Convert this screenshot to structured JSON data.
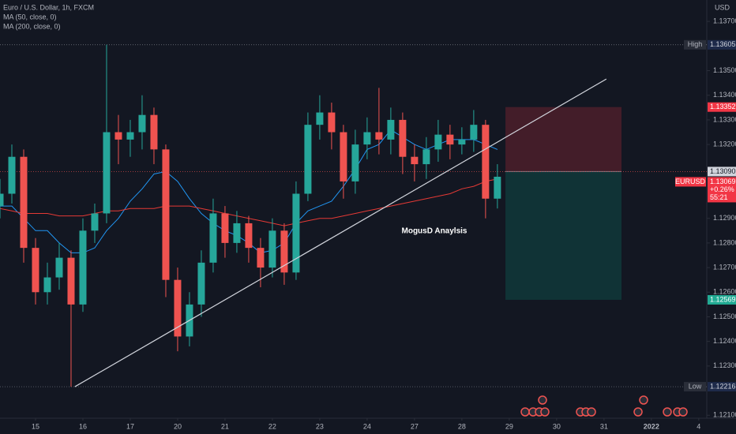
{
  "chart_data": {
    "type": "candlestick",
    "title": "Euro / U.S. Dollar, 1h, FXCM",
    "currency": "USD",
    "x": [
      -0.75,
      -0.5,
      -0.25,
      0,
      0.25,
      0.5,
      0.75,
      1,
      1.25,
      1.5,
      1.75,
      2,
      2.25,
      2.5,
      2.75,
      3,
      3.25,
      3.5,
      3.75,
      4,
      4.25,
      4.5,
      4.75,
      5,
      5.25,
      5.5,
      5.75,
      6,
      6.25,
      6.5,
      6.75,
      7,
      7.25,
      7.5,
      7.75,
      8,
      8.25,
      8.5,
      8.75,
      9,
      9.25,
      9.5,
      9.75
    ],
    "open": [
      1.1295,
      1.13,
      1.1315,
      1.1278,
      1.126,
      1.1266,
      1.1274,
      1.1255,
      1.1285,
      1.1292,
      1.1325,
      1.1322,
      1.1325,
      1.1332,
      1.1318,
      1.1265,
      1.1242,
      1.1255,
      1.1272,
      1.1292,
      1.128,
      1.1288,
      1.1278,
      1.127,
      1.1285,
      1.1268,
      1.13,
      1.1328,
      1.1333,
      1.1325,
      1.1305,
      1.132,
      1.1325,
      1.1322,
      1.133,
      1.1315,
      1.1312,
      1.1318,
      1.1324,
      1.132,
      1.1322,
      1.1328,
      1.1298
    ],
    "high": [
      1.1306,
      1.132,
      1.1318,
      1.1282,
      1.1272,
      1.128,
      1.1277,
      1.129,
      1.1296,
      1.13605,
      1.1332,
      1.133,
      1.134,
      1.1335,
      1.132,
      1.127,
      1.126,
      1.1277,
      1.1298,
      1.1295,
      1.1293,
      1.1291,
      1.1282,
      1.129,
      1.1288,
      1.1305,
      1.1333,
      1.134,
      1.1337,
      1.1328,
      1.1326,
      1.1331,
      1.1343,
      1.1335,
      1.1333,
      1.132,
      1.1323,
      1.133,
      1.1328,
      1.1327,
      1.1334,
      1.133,
      1.1312
    ],
    "low": [
      1.129,
      1.1296,
      1.1272,
      1.1255,
      1.1255,
      1.1261,
      1.12216,
      1.1252,
      1.128,
      1.1288,
      1.1312,
      1.1315,
      1.1318,
      1.1312,
      1.1258,
      1.1236,
      1.1238,
      1.125,
      1.1268,
      1.1274,
      1.1276,
      1.1272,
      1.1262,
      1.1266,
      1.1263,
      1.1265,
      1.1297,
      1.1322,
      1.1318,
      1.1298,
      1.13,
      1.1314,
      1.1316,
      1.1316,
      1.1308,
      1.1305,
      1.1306,
      1.1313,
      1.1314,
      1.1316,
      1.1317,
      1.129,
      1.1294
    ],
    "close": [
      1.13,
      1.1315,
      1.1278,
      1.126,
      1.1266,
      1.1274,
      1.1255,
      1.1285,
      1.1292,
      1.1325,
      1.1322,
      1.1325,
      1.1332,
      1.1318,
      1.1265,
      1.1242,
      1.1255,
      1.1272,
      1.1292,
      1.128,
      1.1288,
      1.1278,
      1.127,
      1.1285,
      1.1268,
      1.13,
      1.1328,
      1.1333,
      1.1325,
      1.1305,
      1.132,
      1.1325,
      1.1322,
      1.133,
      1.1315,
      1.1312,
      1.1318,
      1.1324,
      1.132,
      1.1322,
      1.1328,
      1.1298,
      1.13069
    ],
    "up_color": "#26a69a",
    "down_color": "#ef5350",
    "series": [
      {
        "name": "MA (50, close, 0)",
        "color": "#2196f3",
        "values": [
          1.1295,
          1.1295,
          1.129,
          1.1285,
          1.1285,
          1.128,
          1.1276,
          1.1276,
          1.1278,
          1.1285,
          1.129,
          1.1297,
          1.1302,
          1.1308,
          1.1309,
          1.1305,
          1.1298,
          1.1292,
          1.1288,
          1.1285,
          1.1283,
          1.128,
          1.1276,
          1.1277,
          1.128,
          1.1288,
          1.1293,
          1.1295,
          1.1297,
          1.1303,
          1.131,
          1.1318,
          1.132,
          1.1326,
          1.1323,
          1.132,
          1.1318,
          1.132,
          1.1322,
          1.1322,
          1.1322,
          1.132,
          1.1318
        ]
      },
      {
        "name": "MA (200, close, 0)",
        "color": "#e53935",
        "values": [
          1.1294,
          1.1293,
          1.1292,
          1.1292,
          1.1292,
          1.1291,
          1.1291,
          1.1291,
          1.1292,
          1.1293,
          1.1293,
          1.1294,
          1.1294,
          1.1294,
          1.1295,
          1.1295,
          1.1295,
          1.1294,
          1.1293,
          1.1292,
          1.1291,
          1.129,
          1.1289,
          1.1288,
          1.1287,
          1.1288,
          1.1289,
          1.129,
          1.129,
          1.1291,
          1.1292,
          1.1293,
          1.1294,
          1.1295,
          1.1296,
          1.1297,
          1.1298,
          1.1299,
          1.13,
          1.1302,
          1.1303,
          1.1305,
          1.1306
        ]
      }
    ],
    "xlim": [
      -0.75,
      14.17
    ],
    "ylim": [
      1.12088,
      1.13787
    ],
    "xticks": [
      {
        "value": 0,
        "label": "15"
      },
      {
        "value": 1,
        "label": "16"
      },
      {
        "value": 2,
        "label": "17"
      },
      {
        "value": 3,
        "label": "20"
      },
      {
        "value": 4,
        "label": "21"
      },
      {
        "value": 5,
        "label": "22"
      },
      {
        "value": 6,
        "label": "23"
      },
      {
        "value": 7,
        "label": "24"
      },
      {
        "value": 8,
        "label": "27"
      },
      {
        "value": 9,
        "label": "28"
      },
      {
        "value": 10,
        "label": "29"
      },
      {
        "value": 11,
        "label": "30"
      },
      {
        "value": 12,
        "label": "31"
      },
      {
        "value": 13,
        "label": "2022"
      },
      {
        "value": 14,
        "label": "4"
      }
    ],
    "yticks": [
      {
        "value": 1.137,
        "label": "1.13700"
      },
      {
        "value": 1.135,
        "label": "1.13500"
      },
      {
        "value": 1.134,
        "label": "1.13400"
      },
      {
        "value": 1.133,
        "label": "1.13300"
      },
      {
        "value": 1.132,
        "label": "1.13200"
      },
      {
        "value": 1.129,
        "label": "1.12900"
      },
      {
        "value": 1.128,
        "label": "1.12800"
      },
      {
        "value": 1.127,
        "label": "1.12700"
      },
      {
        "value": 1.126,
        "label": "1.12600"
      },
      {
        "value": 1.125,
        "label": "1.12500"
      },
      {
        "value": 1.124,
        "label": "1.12400"
      },
      {
        "value": 1.123,
        "label": "1.12300"
      },
      {
        "value": 1.121,
        "label": "1.12100"
      }
    ],
    "grid": false,
    "high_marker": {
      "label": "High",
      "value": 1.13605
    },
    "low_marker": {
      "label": "Low",
      "value": 1.12216
    },
    "position": {
      "x": [
        9.92,
        12.37
      ],
      "stop": 1.13352,
      "entry": {
        "value": 1.1309,
        "label": "1.13090"
      },
      "target": 1.12569
    },
    "last_price": {
      "symbol": "EURUSD",
      "value": 1.13069,
      "change": "+0.26%",
      "countdown": "55:21"
    },
    "trendline": {
      "x": [
        0.83,
        12.05
      ],
      "y": [
        1.12216,
        1.13466
      ]
    },
    "annotation": "MogusD Anaylsis"
  }
}
